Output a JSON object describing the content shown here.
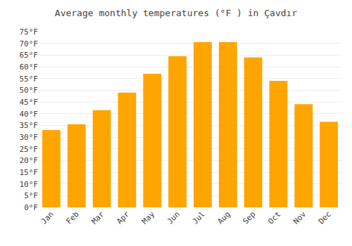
{
  "chart_data": {
    "type": "bar",
    "title": "Average monthly temperatures (°F ) in Çavdır",
    "categories": [
      "Jan",
      "Feb",
      "Mar",
      "Apr",
      "May",
      "Jun",
      "Jul",
      "Aug",
      "Sep",
      "Oct",
      "Nov",
      "Dec"
    ],
    "values": [
      33,
      35.5,
      41.5,
      49,
      57,
      64.5,
      70.5,
      70.5,
      64,
      54,
      44,
      36.5
    ],
    "color": "#FFA500",
    "ylim": [
      0,
      75
    ],
    "yticks": [
      {
        "value": 0,
        "label": "0°F"
      },
      {
        "value": 5,
        "label": "5°F"
      },
      {
        "value": 10,
        "label": "10°F"
      },
      {
        "value": 15,
        "label": "15°F"
      },
      {
        "value": 20,
        "label": "20°F"
      },
      {
        "value": 25,
        "label": "25°F"
      },
      {
        "value": 30,
        "label": "30°F"
      },
      {
        "value": 35,
        "label": "35°F"
      },
      {
        "value": 40,
        "label": "40°F"
      },
      {
        "value": 45,
        "label": "45°F"
      },
      {
        "value": 50,
        "label": "50°F"
      },
      {
        "value": 55,
        "label": "55°F"
      },
      {
        "value": 60,
        "label": "60°F"
      },
      {
        "value": 65,
        "label": "65°F"
      },
      {
        "value": 70,
        "label": "70°F"
      },
      {
        "value": 75,
        "label": "75°F"
      }
    ],
    "grid": true
  }
}
